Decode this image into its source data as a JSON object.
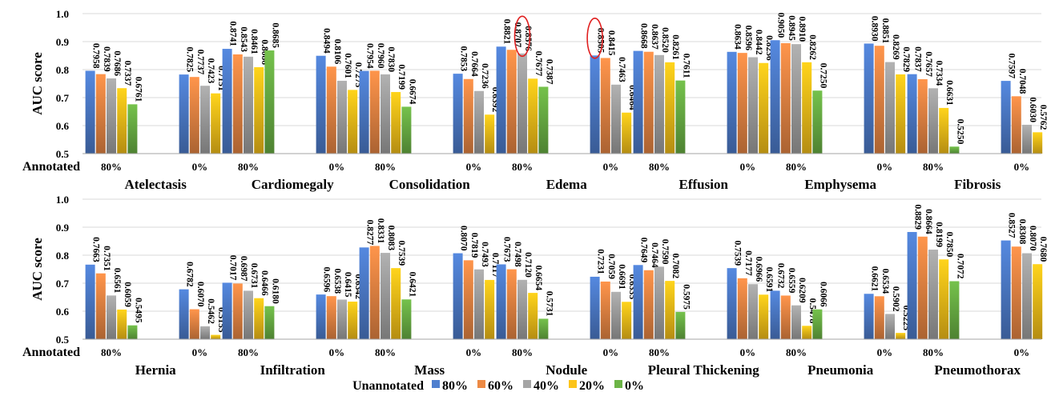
{
  "figure": {
    "legend_title": "Unannotated",
    "row_label_annotated": "Annotated",
    "colors": [
      "#4f7fcf",
      "#ed8a45",
      "#a5a5a5",
      "#fcc419",
      "#6cb446"
    ],
    "highlight_color": "#e02020"
  },
  "chart_data": [
    {
      "type": "bar",
      "panel": "top",
      "ylabel": "AUC score",
      "ylim": [
        0.5,
        1.0
      ],
      "yticks": [
        "0.5",
        "0.6",
        "0.7",
        "0.8",
        "0.9",
        "1.0"
      ],
      "grid": true,
      "series": [
        {
          "name": "80%"
        },
        {
          "name": "60%"
        },
        {
          "name": "40%"
        },
        {
          "name": "20%"
        },
        {
          "name": "0%"
        }
      ],
      "groups": [
        {
          "name": "Atelectasis",
          "bars": [
            {
              "annotated": "80%",
              "values": [
                0.7958,
                0.7839,
                0.7686,
                0.7337,
                0.6761
              ]
            },
            {
              "annotated": "0%",
              "values": [
                0.7825,
                0.7737,
                0.7423,
                0.7151
              ]
            }
          ]
        },
        {
          "name": "Cardiomegaly",
          "bars": [
            {
              "annotated": "80%",
              "values": [
                0.8741,
                0.8543,
                0.8461,
                0.8086,
                0.8685
              ]
            },
            {
              "annotated": "0%",
              "values": [
                0.8494,
                0.8106,
                0.7601,
                0.7275
              ]
            }
          ]
        },
        {
          "name": "Consolidation",
          "bars": [
            {
              "annotated": "80%",
              "values": [
                0.7954,
                0.796,
                0.783,
                0.7199,
                0.6674
              ]
            },
            {
              "annotated": "0%",
              "values": [
                0.7853,
                0.7664,
                0.7236,
                0.6392
              ]
            }
          ]
        },
        {
          "name": "Edema",
          "bars": [
            {
              "annotated": "80%",
              "values": [
                0.8821,
                0.8707,
                0.8576,
                0.7677,
                0.7387
              ],
              "highlight_index": 2
            },
            {
              "annotated": "0%",
              "values": [
                0.8505,
                0.8415,
                0.7463,
                0.6464
              ],
              "highlight_index": 0
            }
          ]
        },
        {
          "name": "Effusion",
          "bars": [
            {
              "annotated": "80%",
              "values": [
                0.8668,
                0.8637,
                0.852,
                0.8261,
                0.7611
              ]
            },
            {
              "annotated": "0%",
              "values": [
                0.8634,
                0.8596,
                0.8442,
                0.8236
              ]
            }
          ]
        },
        {
          "name": "Emphysema",
          "bars": [
            {
              "annotated": "80%",
              "values": [
                0.905,
                0.8945,
                0.891,
                0.8262,
                0.725
              ]
            },
            {
              "annotated": "0%",
              "values": [
                0.893,
                0.8851,
                0.8269,
                0.7829
              ]
            }
          ]
        },
        {
          "name": "Fibrosis",
          "bars": [
            {
              "annotated": "80%",
              "values": [
                0.7837,
                0.7657,
                0.7334,
                0.6631,
                0.525
              ]
            },
            {
              "annotated": "0%",
              "values": [
                0.7597,
                0.7048,
                0.603,
                0.5762
              ]
            }
          ]
        }
      ]
    },
    {
      "type": "bar",
      "panel": "bottom",
      "ylabel": "AUC score",
      "ylim": [
        0.5,
        1.0
      ],
      "yticks": [
        "0.5",
        "0.6",
        "0.7",
        "0.8",
        "0.9",
        "1.0"
      ],
      "grid": true,
      "series": [
        {
          "name": "80%"
        },
        {
          "name": "60%"
        },
        {
          "name": "40%"
        },
        {
          "name": "20%"
        },
        {
          "name": "0%"
        }
      ],
      "groups": [
        {
          "name": "Hernia",
          "bars": [
            {
              "annotated": "80%",
              "values": [
                0.7663,
                0.7351,
                0.6561,
                0.6059,
                0.5495
              ]
            },
            {
              "annotated": "0%",
              "values": [
                0.6782,
                0.607,
                0.5462,
                0.5155
              ]
            }
          ]
        },
        {
          "name": "Infiltration",
          "bars": [
            {
              "annotated": "80%",
              "values": [
                0.7017,
                0.6987,
                0.6731,
                0.6466,
                0.618
              ]
            },
            {
              "annotated": "0%",
              "values": [
                0.6596,
                0.6538,
                0.6415,
                0.6342
              ]
            }
          ]
        },
        {
          "name": "Mass",
          "bars": [
            {
              "annotated": "80%",
              "values": [
                0.8277,
                0.8331,
                0.8083,
                0.7539,
                0.6421
              ]
            },
            {
              "annotated": "0%",
              "values": [
                0.807,
                0.7819,
                0.7493,
                0.7117
              ]
            }
          ]
        },
        {
          "name": "Nodule",
          "bars": [
            {
              "annotated": "80%",
              "values": [
                0.7673,
                0.7498,
                0.712,
                0.6654,
                0.5731
              ]
            },
            {
              "annotated": "0%",
              "values": [
                0.7231,
                0.7059,
                0.6691,
                0.6335
              ]
            }
          ]
        },
        {
          "name": "Pleural Thickening",
          "bars": [
            {
              "annotated": "80%",
              "values": [
                0.7649,
                0.7464,
                0.759,
                0.7082,
                0.5975
              ]
            },
            {
              "annotated": "0%",
              "values": [
                0.7539,
                0.7177,
                0.6966,
                0.6591
              ]
            }
          ]
        },
        {
          "name": "Pneumonia",
          "bars": [
            {
              "annotated": "80%",
              "values": [
                0.6732,
                0.6559,
                0.6209,
                0.5478,
                0.6066
              ]
            },
            {
              "annotated": "0%",
              "values": [
                0.6621,
                0.6534,
                0.5902,
                0.5225
              ]
            }
          ]
        },
        {
          "name": "Pneumothorax",
          "bars": [
            {
              "annotated": "80%",
              "values": [
                0.8829,
                0.8664,
                0.8199,
                0.785,
                0.7072
              ]
            },
            {
              "annotated": "0%",
              "values": [
                0.8527,
                0.8308,
                0.807,
                0.768
              ]
            }
          ]
        }
      ]
    }
  ]
}
